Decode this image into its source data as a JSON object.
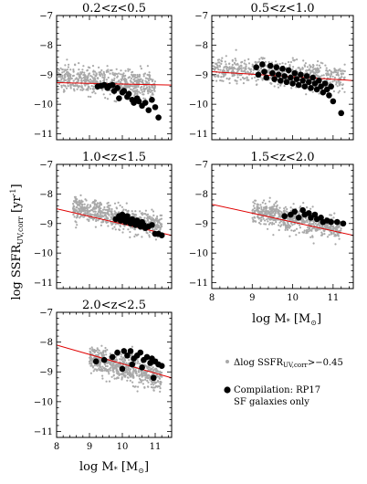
{
  "figure": {
    "ylabel": "log SSFR",
    "ylabel_sub": "UV,corr",
    "ylabel_unit": "[yr",
    "ylabel_unit_sup": "-1",
    "ylabel_unit_end": "]",
    "xlabel": "log M",
    "xlabel_sub": "*",
    "xlabel_unit": "[M",
    "xlabel_unit_sub": "⊙",
    "xlabel_unit_end": "]"
  },
  "legend": {
    "gray_label": "Δlog SSFR",
    "gray_label_sub": "UV,corr",
    "gray_label_tail": ">−0.45",
    "black_label_line1": "Compilation: RP17",
    "black_label_line2": "SF galaxies only"
  },
  "colors": {
    "gray": "#a9a9a9",
    "black": "#000000",
    "red": "#e00000"
  },
  "chart_data": [
    {
      "type": "scatter",
      "title": "0.2<z<0.5",
      "xlim": [
        8,
        11.5
      ],
      "ylim": [
        -11.2,
        -7
      ],
      "xticks": [
        "8",
        "9",
        "10",
        "11"
      ],
      "yticks": [
        "-7",
        "-8",
        "-9",
        "-10",
        "-11"
      ],
      "gray_cloud": {
        "x_range": [
          8.0,
          11.0
        ],
        "y_center": -9.25,
        "slope": -0.07,
        "spread": 0.22
      },
      "fit_line": {
        "x": [
          8,
          11.5
        ],
        "y": [
          -9.27,
          -9.35
        ]
      },
      "compilation": {
        "x": [
          9.25,
          9.35,
          9.45,
          9.55,
          9.6,
          9.7,
          9.75,
          9.85,
          9.9,
          10.0,
          10.05,
          10.15,
          10.2,
          10.3,
          10.35,
          10.45,
          10.5,
          10.6,
          10.7,
          10.8,
          10.9,
          11.0,
          11.1
        ],
        "y": [
          -9.4,
          -9.38,
          -9.35,
          -9.45,
          -9.38,
          -9.35,
          -9.55,
          -9.45,
          -9.8,
          -9.6,
          -9.55,
          -9.75,
          -9.65,
          -9.85,
          -9.95,
          -9.8,
          -9.9,
          -10.05,
          -9.95,
          -10.2,
          -9.85,
          -10.1,
          -10.45
        ]
      }
    },
    {
      "type": "scatter",
      "title": "0.5<z<1.0",
      "xlim": [
        8,
        11.5
      ],
      "ylim": [
        -11.2,
        -7
      ],
      "xticks": [
        "8",
        "9",
        "10",
        "11"
      ],
      "yticks": [
        "-7",
        "-8",
        "-9",
        "-10",
        "-11"
      ],
      "gray_cloud": {
        "x_range": [
          8.0,
          11.3
        ],
        "y_center": -8.95,
        "slope": -0.1,
        "spread": 0.22
      },
      "fit_line": {
        "x": [
          8,
          11.5
        ],
        "y": [
          -8.9,
          -9.2
        ]
      },
      "compilation": {
        "x": [
          9.1,
          9.15,
          9.25,
          9.3,
          9.35,
          9.45,
          9.5,
          9.55,
          9.6,
          9.65,
          9.7,
          9.75,
          9.8,
          9.85,
          9.9,
          9.95,
          10.0,
          10.05,
          10.1,
          10.15,
          10.2,
          10.25,
          10.3,
          10.35,
          10.4,
          10.45,
          10.5,
          10.55,
          10.6,
          10.65,
          10.7,
          10.75,
          10.8,
          10.85,
          10.9,
          10.95,
          11.0,
          11.2
        ],
        "y": [
          -8.75,
          -9.0,
          -8.65,
          -8.9,
          -9.1,
          -8.7,
          -8.95,
          -9.15,
          -8.75,
          -9.0,
          -9.2,
          -8.8,
          -9.05,
          -9.25,
          -8.85,
          -9.1,
          -9.3,
          -8.95,
          -9.15,
          -9.35,
          -9.0,
          -9.2,
          -9.4,
          -9.05,
          -9.25,
          -9.45,
          -9.1,
          -9.3,
          -9.5,
          -9.2,
          -9.4,
          -9.6,
          -9.3,
          -9.5,
          -9.7,
          -9.4,
          -9.9,
          -10.3
        ]
      }
    },
    {
      "type": "scatter",
      "title": "1.0<z<1.5",
      "xlim": [
        8,
        11.5
      ],
      "ylim": [
        -11.2,
        -7
      ],
      "xticks": [
        "8",
        "9",
        "10",
        "11"
      ],
      "yticks": [
        "-7",
        "-8",
        "-9",
        "-10",
        "-11"
      ],
      "gray_cloud": {
        "x_range": [
          8.5,
          11.2
        ],
        "y_center": -8.7,
        "slope": -0.25,
        "spread": 0.2
      },
      "fit_line": {
        "x": [
          8,
          11.5
        ],
        "y": [
          -8.5,
          -9.4
        ]
      },
      "compilation": {
        "x": [
          9.8,
          9.9,
          9.95,
          10.0,
          10.05,
          10.1,
          10.15,
          10.2,
          10.25,
          10.3,
          10.35,
          10.4,
          10.45,
          10.5,
          10.55,
          10.6,
          10.65,
          10.7,
          10.8,
          10.9,
          11.0,
          11.1,
          11.2
        ],
        "y": [
          -8.85,
          -8.75,
          -8.9,
          -8.7,
          -8.85,
          -8.95,
          -8.75,
          -8.9,
          -9.0,
          -8.85,
          -8.95,
          -9.05,
          -8.9,
          -9.0,
          -9.1,
          -8.95,
          -9.05,
          -9.15,
          -9.1,
          -9.05,
          -9.35,
          -9.35,
          -9.4
        ]
      }
    },
    {
      "type": "scatter",
      "title": "1.5<z<2.0",
      "xlim": [
        8,
        11.5
      ],
      "ylim": [
        -11.2,
        -7
      ],
      "xticks": [
        "8",
        "9",
        "10",
        "11"
      ],
      "yticks": [
        "-7",
        "-8",
        "-9",
        "-10",
        "-11"
      ],
      "gray_cloud": {
        "x_range": [
          9.0,
          11.2
        ],
        "y_center": -8.7,
        "slope": -0.3,
        "spread": 0.2
      },
      "fit_line": {
        "x": [
          8,
          11.5
        ],
        "y": [
          -8.35,
          -9.4
        ]
      },
      "compilation": {
        "x": [
          9.8,
          9.95,
          10.05,
          10.15,
          10.25,
          10.3,
          10.4,
          10.45,
          10.55,
          10.6,
          10.7,
          10.75,
          10.85,
          10.95,
          11.1,
          11.25
        ],
        "y": [
          -8.75,
          -8.7,
          -8.6,
          -8.8,
          -8.55,
          -8.7,
          -8.65,
          -8.8,
          -8.7,
          -8.85,
          -8.8,
          -8.95,
          -8.9,
          -8.95,
          -8.95,
          -9.0
        ]
      }
    },
    {
      "type": "scatter",
      "title": "2.0<z<2.5",
      "xlim": [
        8,
        11.5
      ],
      "ylim": [
        -11.2,
        -7
      ],
      "xticks": [
        "8",
        "9",
        "10",
        "11"
      ],
      "yticks": [
        "-7",
        "-8",
        "-9",
        "-10",
        "-11"
      ],
      "gray_cloud": {
        "x_range": [
          9.0,
          11.2
        ],
        "y_center": -8.7,
        "slope": -0.3,
        "spread": 0.22
      },
      "fit_line": {
        "x": [
          8,
          11.5
        ],
        "y": [
          -8.1,
          -9.2
        ]
      },
      "compilation": {
        "x": [
          9.2,
          9.45,
          9.7,
          9.85,
          10.05,
          10.15,
          10.25,
          10.35,
          10.45,
          10.55,
          10.65,
          10.75,
          10.85,
          10.9,
          11.0,
          11.1,
          11.2,
          10.0,
          10.3,
          10.6,
          10.95
        ],
        "y": [
          -8.65,
          -8.6,
          -8.5,
          -8.35,
          -8.3,
          -8.45,
          -8.3,
          -8.55,
          -8.45,
          -8.35,
          -8.6,
          -8.5,
          -8.7,
          -8.55,
          -8.65,
          -8.75,
          -8.8,
          -8.9,
          -8.75,
          -8.85,
          -9.2
        ]
      }
    }
  ]
}
